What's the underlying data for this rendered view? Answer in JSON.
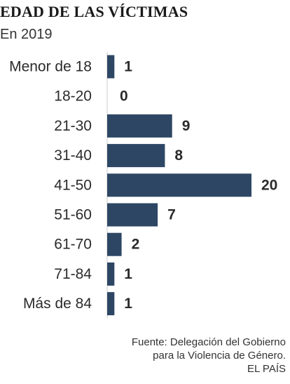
{
  "header": {
    "title": "EDAD DE LAS VÍCTIMAS",
    "subtitle": "En 2019"
  },
  "source": {
    "line1": "Fuente: Delegación del Gobierno",
    "line2": "para la Violencia de Género.",
    "line3": "EL PAÍS"
  },
  "colors": {
    "bar": "#2d4664",
    "axis": "#cccccc"
  },
  "chart_data": {
    "type": "bar",
    "orientation": "horizontal",
    "title": "EDAD DE LAS VÍCTIMAS",
    "subtitle": "En 2019",
    "categories": [
      "Menor de 18",
      "18-20",
      "21-30",
      "31-40",
      "41-50",
      "51-60",
      "61-70",
      "71-84",
      "Más de 84"
    ],
    "values": [
      1,
      0,
      9,
      8,
      20,
      7,
      2,
      1,
      1
    ],
    "xlim": [
      0,
      20
    ],
    "grid": false,
    "legend": "none"
  }
}
